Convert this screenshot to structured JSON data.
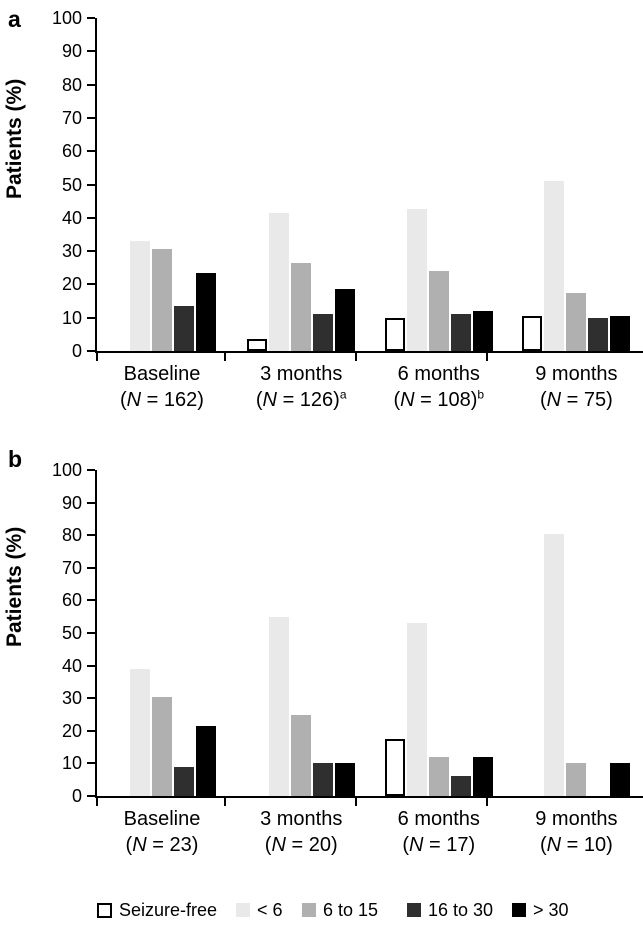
{
  "figure": {
    "ylabel": "Patients (%)",
    "colors": {
      "axis": "#000000",
      "seizure_free": "#ffffff",
      "lt6": "#e9e9e9",
      "s6to15": "#b0b0b0",
      "s16to30": "#2f2f2f",
      "gt30": "#000000"
    }
  },
  "legend": {
    "items": [
      {
        "label": "Seizure-free",
        "color": "#ffffff",
        "outlined": true
      },
      {
        "label": "< 6",
        "color": "#e9e9e9",
        "outlined": false
      },
      {
        "label": "6 to 15",
        "color": "#b0b0b0",
        "outlined": false
      },
      {
        "label": "16 to 30",
        "color": "#2f2f2f",
        "outlined": false
      },
      {
        "label": "> 30",
        "color": "#000000",
        "outlined": false
      }
    ]
  },
  "chart_data": [
    {
      "type": "bar",
      "panel": "a",
      "title": "",
      "xlabel": "",
      "ylabel": "Patients (%)",
      "ylim": [
        0,
        100
      ],
      "ytick_step": 10,
      "grid": false,
      "legend_position": "bottom",
      "categories": [
        {
          "label": "Baseline",
          "n": "162",
          "sup": ""
        },
        {
          "label": "3 months",
          "n": "126",
          "sup": "a"
        },
        {
          "label": "6 months",
          "n": "108",
          "sup": "b"
        },
        {
          "label": "9 months",
          "n": "75",
          "sup": ""
        }
      ],
      "series": [
        {
          "name": "Seizure-free",
          "key": "seizure-free",
          "color": "#ffffff",
          "outlined": true,
          "values": [
            0,
            3.5,
            10,
            10.5
          ]
        },
        {
          "name": "< 6",
          "key": "lt6",
          "color": "#e9e9e9",
          "outlined": false,
          "values": [
            33,
            41.5,
            42.5,
            51
          ]
        },
        {
          "name": "6 to 15",
          "key": "6to15",
          "color": "#b0b0b0",
          "outlined": false,
          "values": [
            30.5,
            26.5,
            24,
            17.5
          ]
        },
        {
          "name": "16 to 30",
          "key": "16to30",
          "color": "#2f2f2f",
          "outlined": false,
          "values": [
            13.5,
            11,
            11,
            10
          ]
        },
        {
          "name": "> 30",
          "key": "gt30",
          "color": "#000000",
          "outlined": false,
          "values": [
            23.5,
            18.5,
            12,
            10.5
          ]
        }
      ]
    },
    {
      "type": "bar",
      "panel": "b",
      "title": "",
      "xlabel": "",
      "ylabel": "Patients (%)",
      "ylim": [
        0,
        100
      ],
      "ytick_step": 10,
      "grid": false,
      "legend_position": "bottom",
      "categories": [
        {
          "label": "Baseline",
          "n": "23",
          "sup": ""
        },
        {
          "label": "3 months",
          "n": "20",
          "sup": ""
        },
        {
          "label": "6 months",
          "n": "17",
          "sup": ""
        },
        {
          "label": "9 months",
          "n": "10",
          "sup": ""
        }
      ],
      "series": [
        {
          "name": "Seizure-free",
          "key": "seizure-free",
          "color": "#ffffff",
          "outlined": true,
          "values": [
            0,
            0,
            17.5,
            0
          ]
        },
        {
          "name": "< 6",
          "key": "lt6",
          "color": "#e9e9e9",
          "outlined": false,
          "values": [
            39,
            55,
            53,
            80.5
          ]
        },
        {
          "name": "6 to 15",
          "key": "6to15",
          "color": "#b0b0b0",
          "outlined": false,
          "values": [
            30.5,
            25,
            12,
            10
          ]
        },
        {
          "name": "16 to 30",
          "key": "16to30",
          "color": "#2f2f2f",
          "outlined": false,
          "values": [
            9,
            10,
            6,
            0
          ]
        },
        {
          "name": "> 30",
          "key": "gt30",
          "color": "#000000",
          "outlined": false,
          "values": [
            21.5,
            10,
            12,
            10
          ]
        }
      ]
    }
  ]
}
